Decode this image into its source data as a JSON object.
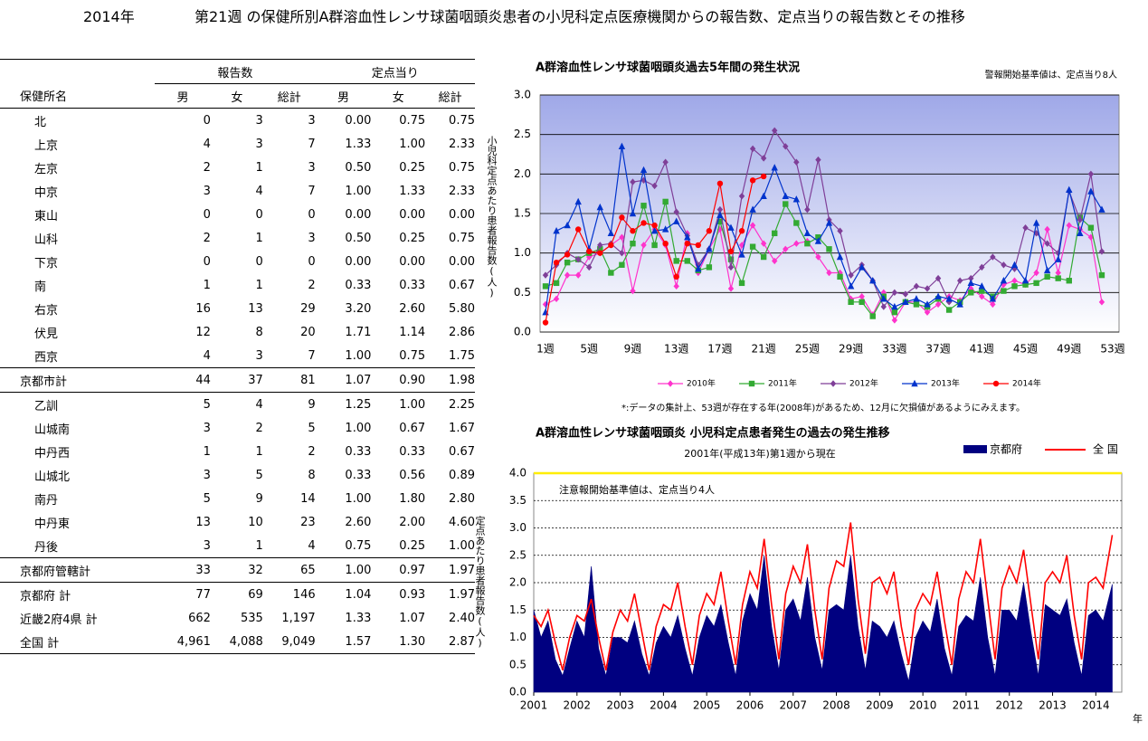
{
  "header": {
    "year": "2014年",
    "title": "第21週 の保健所別A群溶血性レンサ球菌咽頭炎患者の小児科定点医療機関からの報告数、定点当りの報告数とその推移"
  },
  "table": {
    "group_headers": [
      "報告数",
      "定点当り"
    ],
    "columns": [
      "保健所名",
      "男",
      "女",
      "総計",
      "男",
      "女",
      "総計"
    ],
    "rows": [
      [
        "北",
        "0",
        "3",
        "3",
        "0.00",
        "0.75",
        "0.75"
      ],
      [
        "上京",
        "4",
        "3",
        "7",
        "1.33",
        "1.00",
        "2.33"
      ],
      [
        "左京",
        "2",
        "1",
        "3",
        "0.50",
        "0.25",
        "0.75"
      ],
      [
        "中京",
        "3",
        "4",
        "7",
        "1.00",
        "1.33",
        "2.33"
      ],
      [
        "東山",
        "0",
        "0",
        "0",
        "0.00",
        "0.00",
        "0.00"
      ],
      [
        "山科",
        "2",
        "1",
        "3",
        "0.50",
        "0.25",
        "0.75"
      ],
      [
        "下京",
        "0",
        "0",
        "0",
        "0.00",
        "0.00",
        "0.00"
      ],
      [
        "南",
        "1",
        "1",
        "2",
        "0.33",
        "0.33",
        "0.67"
      ],
      [
        "右京",
        "16",
        "13",
        "29",
        "3.20",
        "2.60",
        "5.80"
      ],
      [
        "伏見",
        "12",
        "8",
        "20",
        "1.71",
        "1.14",
        "2.86"
      ],
      [
        "西京",
        "4",
        "3",
        "7",
        "1.00",
        "0.75",
        "1.75"
      ],
      [
        "京都市計",
        "44",
        "37",
        "81",
        "1.07",
        "0.90",
        "1.98"
      ],
      [
        "乙訓",
        "5",
        "4",
        "9",
        "1.25",
        "1.00",
        "2.25"
      ],
      [
        "山城南",
        "3",
        "2",
        "5",
        "1.00",
        "0.67",
        "1.67"
      ],
      [
        "中丹西",
        "1",
        "1",
        "2",
        "0.33",
        "0.33",
        "0.67"
      ],
      [
        "山城北",
        "3",
        "5",
        "8",
        "0.33",
        "0.56",
        "0.89"
      ],
      [
        "南丹",
        "5",
        "9",
        "14",
        "1.00",
        "1.80",
        "2.80"
      ],
      [
        "中丹東",
        "13",
        "10",
        "23",
        "2.60",
        "2.00",
        "4.60"
      ],
      [
        "丹後",
        "3",
        "1",
        "4",
        "0.75",
        "0.25",
        "1.00"
      ],
      [
        "京都府管轄計",
        "33",
        "32",
        "65",
        "1.00",
        "0.97",
        "1.97"
      ],
      [
        "京都府 計",
        "77",
        "69",
        "146",
        "1.04",
        "0.93",
        "1.97"
      ],
      [
        "近畿2府4県 計",
        "662",
        "535",
        "1,197",
        "1.33",
        "1.07",
        "2.40"
      ],
      [
        "全国 計",
        "4,961",
        "4,088",
        "9,049",
        "1.57",
        "1.30",
        "2.87"
      ]
    ]
  },
  "chart_data": [
    {
      "type": "line",
      "title": "A群溶血性レンサ球菌咽頭炎過去5年間の発生状況",
      "note": "警報開始基準値は、定点当り8人",
      "ylabel": "小児科定点あたり患者報告数(人)",
      "footnote": "*:データの集計上、53週が存在する年(2008年)があるため、12月に欠損値があるようにみえます。",
      "categories": [
        "1週",
        null,
        null,
        null,
        "5週",
        null,
        null,
        null,
        "9週",
        null,
        null,
        null,
        "13週",
        null,
        null,
        null,
        "17週",
        null,
        null,
        null,
        "21週",
        null,
        null,
        null,
        "25週",
        null,
        null,
        null,
        "29週",
        null,
        null,
        null,
        "33週",
        null,
        null,
        null,
        "37週",
        null,
        null,
        null,
        "41週",
        null,
        null,
        null,
        "45週",
        null,
        null,
        null,
        "49週",
        null,
        null,
        null,
        "53週"
      ],
      "ylim": [
        0,
        3
      ],
      "yticks": [
        {
          "value": 0,
          "label": "0.0"
        },
        0.5,
        {
          "value": 1,
          "label": "1.0"
        },
        1.5,
        {
          "value": 2,
          "label": "2.0"
        },
        2.5,
        {
          "value": 3,
          "label": "3.0"
        }
      ],
      "grid": true,
      "series": [
        {
          "name": "2010年",
          "color": "#ff33cc",
          "marker": "diamond",
          "values": [
            0.35,
            0.42,
            0.72,
            0.72,
            0.95,
            1.0,
            1.1,
            1.2,
            0.52,
            1.1,
            1.3,
            1.1,
            0.58,
            1.25,
            0.75,
            1.05,
            1.3,
            0.55,
            1.1,
            1.35,
            1.12,
            0.9,
            1.05,
            1.12,
            1.15,
            0.95,
            0.75,
            0.75,
            0.42,
            0.45,
            0.22,
            0.5,
            0.15,
            0.38,
            0.38,
            0.25,
            0.35,
            0.45,
            0.4,
            0.55,
            0.45,
            0.35,
            0.6,
            0.65,
            0.6,
            0.75,
            1.3,
            0.75,
            1.35,
            1.3,
            1.2,
            0.38,
            null
          ]
        },
        {
          "name": "2011年",
          "color": "#33aa33",
          "marker": "square",
          "values": [
            0.58,
            0.62,
            0.88,
            0.92,
            1.0,
            1.05,
            0.75,
            0.85,
            1.12,
            1.6,
            1.1,
            1.65,
            0.9,
            0.9,
            0.78,
            0.82,
            1.4,
            0.92,
            0.62,
            1.08,
            0.95,
            1.25,
            1.62,
            1.38,
            1.12,
            1.2,
            1.05,
            0.7,
            0.38,
            0.38,
            0.2,
            0.45,
            0.25,
            0.38,
            0.35,
            0.32,
            0.42,
            0.28,
            0.38,
            0.5,
            0.52,
            0.45,
            0.52,
            0.58,
            0.6,
            0.62,
            0.7,
            0.68,
            0.65,
            1.45,
            1.32,
            0.72,
            null
          ]
        },
        {
          "name": "2012年",
          "color": "#7f3f98",
          "marker": "diamond",
          "values": [
            0.72,
            0.85,
            1.0,
            0.92,
            0.82,
            1.1,
            1.12,
            1.0,
            1.9,
            1.92,
            1.85,
            2.15,
            1.52,
            1.22,
            0.85,
            1.05,
            1.55,
            0.82,
            1.72,
            2.32,
            2.2,
            2.55,
            2.35,
            2.15,
            1.55,
            2.18,
            1.42,
            1.28,
            0.72,
            0.85,
            0.65,
            0.32,
            0.5,
            0.48,
            0.58,
            0.55,
            0.68,
            0.38,
            0.65,
            0.68,
            0.82,
            0.95,
            0.85,
            0.8,
            1.32,
            1.25,
            1.12,
            1.0,
            1.78,
            1.42,
            2.0,
            1.02,
            null
          ]
        },
        {
          "name": "2013年",
          "color": "#0033cc",
          "marker": "triangle",
          "values": [
            0.25,
            1.28,
            1.35,
            1.65,
            1.05,
            1.58,
            1.25,
            2.35,
            1.5,
            2.05,
            1.28,
            1.3,
            1.4,
            1.2,
            0.8,
            1.05,
            1.48,
            1.32,
            0.98,
            1.55,
            1.72,
            2.08,
            1.72,
            1.68,
            1.25,
            1.15,
            1.38,
            0.95,
            0.58,
            0.82,
            0.65,
            0.42,
            0.32,
            0.38,
            0.42,
            0.35,
            0.45,
            0.42,
            0.35,
            0.62,
            0.58,
            0.42,
            0.65,
            0.85,
            0.65,
            1.38,
            0.78,
            0.92,
            1.8,
            1.25,
            1.78,
            1.55,
            null
          ]
        },
        {
          "name": "2014年",
          "color": "#ff0000",
          "marker": "circle",
          "values": [
            0.12,
            0.88,
            0.98,
            1.3,
            1.02,
            1.0,
            1.1,
            1.45,
            1.28,
            1.38,
            1.35,
            1.12,
            0.7,
            1.12,
            1.1,
            1.28,
            1.88,
            1.02,
            1.28,
            1.92,
            1.97,
            null,
            null,
            null,
            null,
            null,
            null,
            null,
            null,
            null,
            null,
            null,
            null,
            null,
            null,
            null,
            null,
            null,
            null,
            null,
            null,
            null,
            null,
            null,
            null,
            null,
            null,
            null,
            null,
            null,
            null,
            null,
            null
          ]
        }
      ]
    },
    {
      "type": "area",
      "title": "A群溶血性レンサ球菌咽頭炎 小児科定点患者発生の過去の発生推移",
      "subtitle": "2001年(平成13年)第1週から現在",
      "annotation": "注意報開始基準値は、定点当り4人",
      "ylabel": "定点あたり患者報告数(人)",
      "xlabel": "年",
      "x": [
        2001,
        2001.17,
        2001.33,
        2001.5,
        2001.67,
        2001.83,
        2002,
        2002.17,
        2002.33,
        2002.5,
        2002.67,
        2002.83,
        2003,
        2003.17,
        2003.33,
        2003.5,
        2003.67,
        2003.83,
        2004,
        2004.17,
        2004.33,
        2004.5,
        2004.67,
        2004.83,
        2005,
        2005.17,
        2005.33,
        2005.5,
        2005.67,
        2005.83,
        2006,
        2006.17,
        2006.33,
        2006.5,
        2006.67,
        2006.83,
        2007,
        2007.17,
        2007.33,
        2007.5,
        2007.67,
        2007.83,
        2008,
        2008.17,
        2008.33,
        2008.5,
        2008.67,
        2008.83,
        2009,
        2009.17,
        2009.33,
        2009.5,
        2009.67,
        2009.83,
        2010,
        2010.17,
        2010.33,
        2010.5,
        2010.67,
        2010.83,
        2011,
        2011.17,
        2011.33,
        2011.5,
        2011.67,
        2011.83,
        2012,
        2012.17,
        2012.33,
        2012.5,
        2012.67,
        2012.83,
        2013,
        2013.17,
        2013.33,
        2013.5,
        2013.67,
        2013.83,
        2014,
        2014.17,
        2014.38
      ],
      "xlim": [
        2001,
        2014.6
      ],
      "xticks": [
        2001,
        2002,
        2003,
        2004,
        2005,
        2006,
        2007,
        2008,
        2009,
        2010,
        2011,
        2012,
        2013,
        2014
      ],
      "ylim": [
        0,
        4
      ],
      "yticks": [
        {
          "value": 0,
          "label": "0.0"
        },
        0.5,
        {
          "value": 1,
          "label": "1.0"
        },
        1.5,
        {
          "value": 2,
          "label": "2.0"
        },
        2.5,
        {
          "value": 3,
          "label": "3.0"
        },
        3.5,
        {
          "value": 4,
          "label": "4.0"
        }
      ],
      "grid": true,
      "series": [
        {
          "name": "京都府",
          "color": "#000080",
          "kind": "area",
          "values": [
            1.5,
            1.0,
            1.3,
            0.6,
            0.3,
            0.8,
            1.3,
            1.0,
            2.3,
            0.8,
            0.3,
            1.0,
            1.0,
            0.9,
            1.3,
            0.7,
            0.3,
            0.9,
            1.2,
            1.0,
            1.4,
            0.8,
            0.3,
            1.0,
            1.4,
            1.2,
            1.6,
            0.9,
            0.3,
            1.3,
            1.8,
            1.5,
            2.5,
            1.2,
            0.4,
            1.5,
            1.7,
            1.3,
            2.1,
            1.0,
            0.4,
            1.5,
            1.6,
            1.5,
            2.5,
            1.2,
            0.4,
            1.3,
            1.2,
            1.0,
            1.3,
            0.7,
            0.2,
            1.0,
            1.3,
            1.1,
            1.7,
            0.8,
            0.3,
            1.2,
            1.4,
            1.3,
            2.1,
            1.0,
            0.3,
            1.5,
            1.5,
            1.3,
            2.0,
            1.1,
            0.3,
            1.6,
            1.5,
            1.4,
            1.7,
            0.9,
            0.3,
            1.4,
            1.5,
            1.3,
            1.97
          ]
        },
        {
          "name": "全 国",
          "color": "#ff0000",
          "kind": "line",
          "values": [
            1.4,
            1.2,
            1.5,
            0.9,
            0.4,
            1.0,
            1.4,
            1.3,
            1.7,
            1.0,
            0.4,
            1.1,
            1.5,
            1.3,
            1.8,
            1.1,
            0.4,
            1.2,
            1.6,
            1.5,
            2.0,
            1.2,
            0.5,
            1.4,
            1.8,
            1.6,
            2.2,
            1.3,
            0.5,
            1.6,
            2.2,
            1.9,
            2.8,
            1.6,
            0.6,
            1.8,
            2.3,
            2.0,
            2.7,
            1.5,
            0.6,
            1.9,
            2.4,
            2.3,
            3.1,
            1.7,
            0.7,
            2.0,
            2.1,
            1.8,
            2.2,
            1.2,
            0.5,
            1.5,
            1.8,
            1.6,
            2.2,
            1.3,
            0.5,
            1.7,
            2.2,
            2.0,
            2.8,
            1.7,
            0.6,
            1.9,
            2.3,
            2.0,
            2.6,
            1.6,
            0.6,
            2.0,
            2.2,
            2.0,
            2.5,
            1.4,
            0.6,
            2.0,
            2.1,
            1.9,
            2.87
          ]
        }
      ]
    }
  ]
}
